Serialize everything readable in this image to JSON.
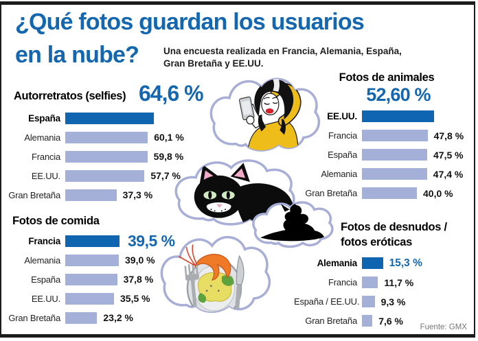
{
  "header": {
    "title_line1": "¿Qué fotos guardan los usuarios",
    "title_line2": "en la nube?",
    "subtitle_line1": "Una encuesta realizada en Francia, Alemania, España,",
    "subtitle_line2": "Gran Bretaña y EE.UU."
  },
  "footer": {
    "source": "Fuente: GMX"
  },
  "colors": {
    "accent_blue": "#1467af",
    "dark_bar": "#1065b0",
    "light_bar": "#a5b0d8",
    "cloud_outline": "#a8aed6",
    "value_text": "#111111",
    "source_gray": "#757575"
  },
  "illustrations": [
    "selfie-woman",
    "black-cat",
    "nude-silhouette",
    "food-plate"
  ],
  "chart_data": [
    {
      "type": "bar",
      "title": "Autorretratos (selfies)",
      "headline_value": "64,6 %",
      "headline_placement": "beside-title",
      "categories": [
        "España",
        "Alemania",
        "Francia",
        "EE.UU.",
        "Gran Bretaña"
      ],
      "values": [
        64.6,
        60.1,
        59.8,
        57.7,
        37.3
      ],
      "value_labels": [
        "",
        "60,1 %",
        "59,8 %",
        "57,7 %",
        "37,3 %"
      ],
      "highlight_index": 0,
      "unit": "%",
      "xlim": [
        0,
        100
      ]
    },
    {
      "type": "bar",
      "title": "Fotos de animales",
      "headline_value": "52,60 %",
      "headline_placement": "below-title",
      "categories": [
        "EE.UU.",
        "Francia",
        "España",
        "Alemania",
        "Gran Bretaña"
      ],
      "values": [
        52.6,
        47.8,
        47.5,
        47.4,
        40.0
      ],
      "value_labels": [
        "",
        "47,8 %",
        "47,5 %",
        "47,4 %",
        "40,0 %"
      ],
      "highlight_index": 0,
      "unit": "%",
      "xlim": [
        0,
        100
      ]
    },
    {
      "type": "bar",
      "title": "Fotos de comida",
      "headline_value": "39,5 %",
      "headline_placement": "first-row",
      "categories": [
        "Francia",
        "Alemania",
        "España",
        "EE.UU.",
        "Gran Bretaña"
      ],
      "values": [
        39.5,
        39.0,
        37.8,
        35.5,
        23.2
      ],
      "value_labels": [
        "39,5 %",
        "39,0 %",
        "37,8 %",
        "35,5 %",
        "23,2 %"
      ],
      "highlight_index": 0,
      "unit": "%",
      "xlim": [
        0,
        100
      ]
    },
    {
      "type": "bar",
      "title": "Fotos de desnudos / fotos eróticas",
      "title_line1": "Fotos de desnudos /",
      "title_line2": "fotos eróticas",
      "headline_value": "15,3 %",
      "headline_placement": "first-row",
      "categories": [
        "Alemania",
        "Francia",
        "España / EE.UU.",
        "Gran Bretaña"
      ],
      "values": [
        15.3,
        11.7,
        9.3,
        7.6
      ],
      "value_labels": [
        "15,3 %",
        "11,7 %",
        "9,3 %",
        "7,6 %"
      ],
      "highlight_index": 0,
      "unit": "%",
      "xlim": [
        0,
        100
      ]
    }
  ]
}
